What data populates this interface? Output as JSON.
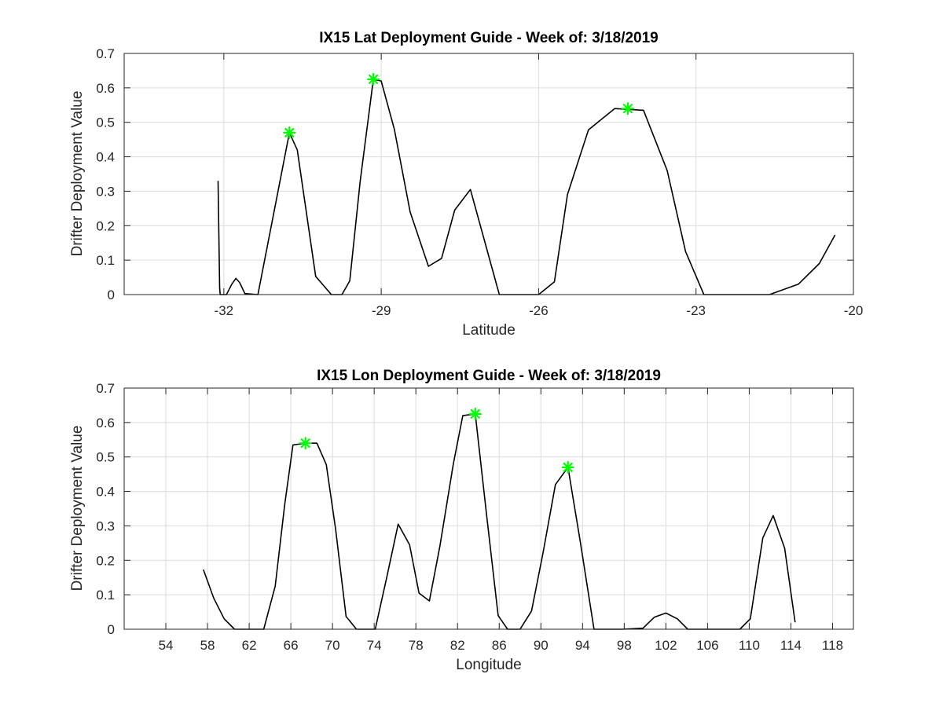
{
  "chart_data": [
    {
      "type": "line",
      "title": "IX15 Lat Deployment Guide - Week of: 3/18/2019",
      "xlabel": "Latitude",
      "ylabel": "Drifter Deployment Value",
      "xlim": [
        -33.9,
        -20
      ],
      "ylim": [
        0,
        0.7
      ],
      "xticks": [
        -32,
        -29,
        -26,
        -23,
        -20
      ],
      "xtick_labels": [
        "-32",
        "-29",
        "-26",
        "-23",
        "-20"
      ],
      "yticks": [
        0,
        0.1,
        0.2,
        0.3,
        0.4,
        0.5,
        0.6,
        0.7
      ],
      "ytick_labels": [
        "0",
        "0.1",
        "0.2",
        "0.3",
        "0.4",
        "0.5",
        "0.6",
        "0.7"
      ],
      "grid": true,
      "series": [
        {
          "color": "#000000",
          "x": [
            -32.11,
            -32.08,
            -32.07,
            -31.95,
            -31.85,
            -31.77,
            -31.7,
            -31.6,
            -31.35,
            -30.75,
            -30.6,
            -30.25,
            -29.95,
            -29.75,
            -29.6,
            -29.4,
            -29.15,
            -29.0,
            -28.75,
            -28.45,
            -28.1,
            -27.85,
            -27.6,
            -27.3,
            -26.75,
            -26.0,
            -25.7,
            -25.45,
            -25.05,
            -24.55,
            -24.0,
            -23.55,
            -23.2,
            -22.85,
            -22.3,
            -21.6,
            -21.05,
            -20.65,
            -20.35
          ],
          "y": [
            0.33,
            0.02,
            0.0,
            0.0,
            0.03,
            0.047,
            0.035,
            0.003,
            0.0,
            0.47,
            0.42,
            0.053,
            0.0,
            0.0,
            0.04,
            0.33,
            0.625,
            0.62,
            0.48,
            0.24,
            0.082,
            0.105,
            0.245,
            0.305,
            0.0,
            0.0,
            0.037,
            0.29,
            0.478,
            0.54,
            0.535,
            0.36,
            0.125,
            0.0,
            0.0,
            0.0,
            0.03,
            0.09,
            0.173
          ]
        }
      ],
      "markers": {
        "color": "#00ff00",
        "x": [
          -30.75,
          -29.15,
          -24.3
        ],
        "y": [
          0.47,
          0.625,
          0.54
        ]
      }
    },
    {
      "type": "line",
      "title": "IX15 Lon Deployment Guide - Week of: 3/18/2019",
      "xlabel": "Longitude",
      "ylabel": "Drifter Deployment Value",
      "xlim": [
        50,
        120
      ],
      "ylim": [
        0,
        0.7
      ],
      "xticks": [
        54,
        58,
        62,
        66,
        70,
        74,
        78,
        82,
        86,
        90,
        94,
        98,
        102,
        106,
        110,
        114,
        118
      ],
      "xtick_labels": [
        "54",
        "58",
        "62",
        "66",
        "70",
        "74",
        "78",
        "82",
        "86",
        "90",
        "94",
        "98",
        "102",
        "106",
        "110",
        "114",
        "118"
      ],
      "yticks": [
        0,
        0.1,
        0.2,
        0.3,
        0.4,
        0.5,
        0.6,
        0.7
      ],
      "ytick_labels": [
        "0",
        "0.1",
        "0.2",
        "0.3",
        "0.4",
        "0.5",
        "0.6",
        "0.7"
      ],
      "grid": true,
      "series": [
        {
          "color": "#000000",
          "x": [
            57.6,
            58.6,
            59.6,
            60.6,
            63.4,
            64.5,
            65.4,
            66.2,
            67.4,
            68.5,
            69.4,
            70.3,
            71.3,
            72.3,
            74.1,
            75.2,
            76.3,
            77.4,
            78.3,
            79.3,
            80.3,
            81.6,
            82.5,
            83.7,
            84.8,
            85.9,
            86.8,
            88.0,
            89.1,
            90.2,
            91.4,
            92.6,
            93.8,
            95.1,
            97.8,
            99.8,
            100.9,
            102.0,
            103.1,
            104.1,
            109.1,
            110.1,
            111.3,
            112.3,
            113.4,
            114.4
          ],
          "y": [
            0.173,
            0.09,
            0.03,
            0.0,
            0.0,
            0.125,
            0.36,
            0.535,
            0.54,
            0.54,
            0.478,
            0.29,
            0.037,
            0.0,
            0.0,
            0.15,
            0.305,
            0.245,
            0.105,
            0.082,
            0.24,
            0.48,
            0.62,
            0.625,
            0.33,
            0.04,
            0.0,
            0.0,
            0.053,
            0.22,
            0.42,
            0.47,
            0.25,
            0.0,
            0.0,
            0.003,
            0.035,
            0.047,
            0.03,
            0.0,
            0.0,
            0.03,
            0.265,
            0.33,
            0.235,
            0.02
          ]
        }
      ],
      "markers": {
        "color": "#00ff00",
        "x": [
          67.4,
          83.7,
          92.6
        ],
        "y": [
          0.54,
          0.625,
          0.47
        ]
      }
    }
  ]
}
